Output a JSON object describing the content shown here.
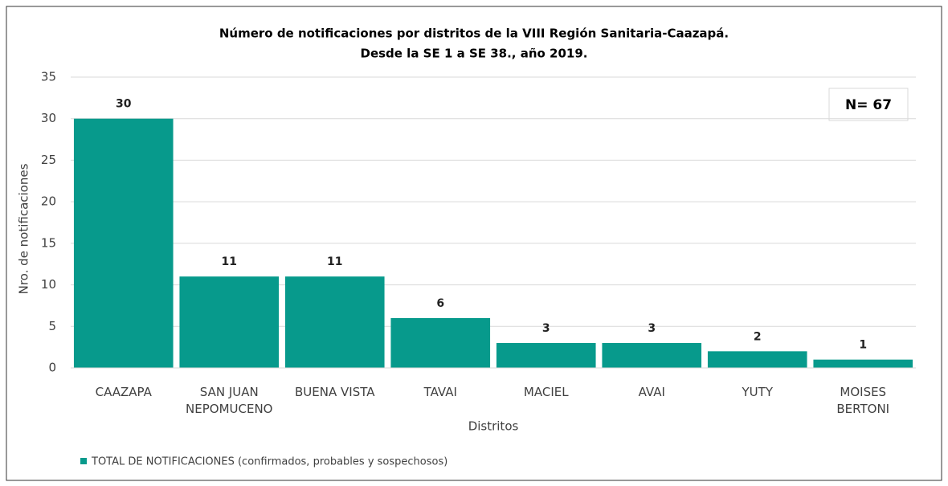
{
  "chart_data": {
    "type": "bar",
    "title": [
      "Número de notificaciones por distritos de la VIII Región Sanitaria-Caazapá.",
      "Desde la SE 1 a SE 38., año 2019."
    ],
    "categories": [
      "CAAZAPA",
      "SAN JUAN\nNEPOMUCENO",
      "BUENA VISTA",
      "TAVAI",
      "MACIEL",
      "AVAI",
      "YUTY",
      "MOISES\nBERTONI"
    ],
    "series": [
      {
        "name": "TOTAL DE NOTIFICACIONES (confirmados, probables y sospechosos)",
        "color": "#079a8c",
        "values": [
          30,
          11,
          11,
          6,
          3,
          3,
          2,
          1
        ]
      }
    ],
    "ylim": [
      0,
      35
    ],
    "yticks": [
      0,
      5,
      10,
      15,
      20,
      25,
      30,
      35
    ],
    "grid": true,
    "y_label": "Nro. de notificaciones",
    "x_label": "Distritos",
    "annotation": "N= 67"
  }
}
